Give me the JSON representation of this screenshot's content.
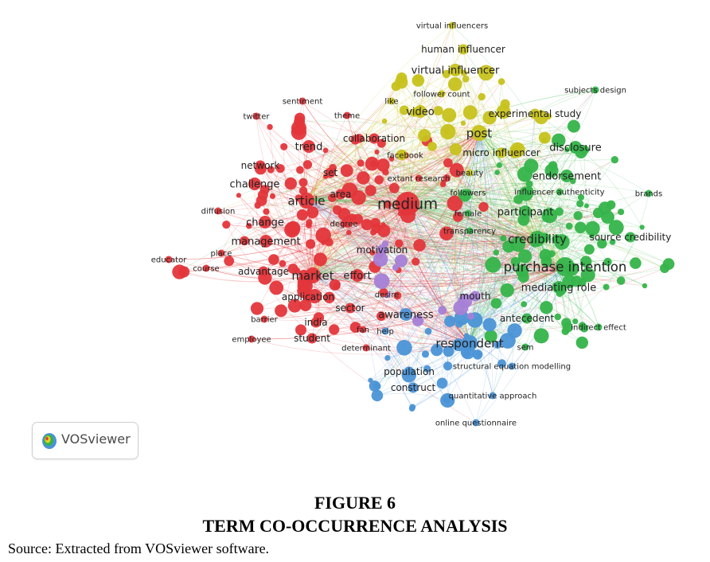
{
  "colors": {
    "red": "#e3363b",
    "green": "#35b44a",
    "blue": "#4b93d6",
    "yellow": "#c7c21c",
    "purple": "#a57fd6"
  },
  "logo": {
    "text": "VOSviewer",
    "icon": "vosviewer-logo-icon"
  },
  "figure": {
    "number": "FIGURE 6",
    "title": "TERM CO-OCCURRENCE ANALYSIS",
    "source": "Source: Extracted from VOSviewer software."
  },
  "network": {
    "terms": [
      {
        "label": "virtual influencers",
        "cluster": "yellow",
        "weight": 1
      },
      {
        "label": "human influencer",
        "cluster": "yellow",
        "weight": 2
      },
      {
        "label": "virtual influencer",
        "cluster": "yellow",
        "weight": 3
      },
      {
        "label": "follower count",
        "cluster": "yellow",
        "weight": 1
      },
      {
        "label": "like",
        "cluster": "yellow",
        "weight": 1
      },
      {
        "label": "video",
        "cluster": "yellow",
        "weight": 3
      },
      {
        "label": "post",
        "cluster": "yellow",
        "weight": 4
      },
      {
        "label": "experimental study",
        "cluster": "yellow",
        "weight": 2
      },
      {
        "label": "micro influencer",
        "cluster": "yellow",
        "weight": 2
      },
      {
        "label": "beauty",
        "cluster": "yellow",
        "weight": 1
      },
      {
        "label": "subjects design",
        "cluster": "green",
        "weight": 1
      },
      {
        "label": "disclosure",
        "cluster": "green",
        "weight": 3
      },
      {
        "label": "endorsement",
        "cluster": "green",
        "weight": 3
      },
      {
        "label": "influencer authenticity",
        "cluster": "green",
        "weight": 1
      },
      {
        "label": "brands",
        "cluster": "green",
        "weight": 1
      },
      {
        "label": "participant",
        "cluster": "green",
        "weight": 3
      },
      {
        "label": "credibility",
        "cluster": "green",
        "weight": 4
      },
      {
        "label": "source credibility",
        "cluster": "green",
        "weight": 2
      },
      {
        "label": "purchase intention",
        "cluster": "green",
        "weight": 5
      },
      {
        "label": "mediating role",
        "cluster": "green",
        "weight": 3
      },
      {
        "label": "indirect effect",
        "cluster": "green",
        "weight": 1
      },
      {
        "label": "antecedent",
        "cluster": "green",
        "weight": 2
      },
      {
        "label": "sem",
        "cluster": "green",
        "weight": 1
      },
      {
        "label": "female",
        "cluster": "green",
        "weight": 1
      },
      {
        "label": "followers",
        "cluster": "green",
        "weight": 1
      },
      {
        "label": "transparency",
        "cluster": "green",
        "weight": 1
      },
      {
        "label": "sentiment",
        "cluster": "red",
        "weight": 1
      },
      {
        "label": "theme",
        "cluster": "red",
        "weight": 1
      },
      {
        "label": "twitter",
        "cluster": "red",
        "weight": 1
      },
      {
        "label": "collaboration",
        "cluster": "red",
        "weight": 2
      },
      {
        "label": "trend",
        "cluster": "red",
        "weight": 3
      },
      {
        "label": "facebook",
        "cluster": "red",
        "weight": 1
      },
      {
        "label": "network",
        "cluster": "red",
        "weight": 2
      },
      {
        "label": "set",
        "cluster": "red",
        "weight": 2
      },
      {
        "label": "extant research",
        "cluster": "red",
        "weight": 1
      },
      {
        "label": "challenge",
        "cluster": "red",
        "weight": 3
      },
      {
        "label": "article",
        "cluster": "red",
        "weight": 4
      },
      {
        "label": "area",
        "cluster": "red",
        "weight": 2
      },
      {
        "label": "medium",
        "cluster": "red",
        "weight": 6
      },
      {
        "label": "diffusion",
        "cluster": "red",
        "weight": 1
      },
      {
        "label": "change",
        "cluster": "red",
        "weight": 3
      },
      {
        "label": "degree",
        "cluster": "red",
        "weight": 1
      },
      {
        "label": "management",
        "cluster": "red",
        "weight": 3
      },
      {
        "label": "educator",
        "cluster": "red",
        "weight": 1
      },
      {
        "label": "place",
        "cluster": "red",
        "weight": 1
      },
      {
        "label": "course",
        "cluster": "red",
        "weight": 1
      },
      {
        "label": "advantage",
        "cluster": "red",
        "weight": 2
      },
      {
        "label": "market",
        "cluster": "red",
        "weight": 4
      },
      {
        "label": "effort",
        "cluster": "red",
        "weight": 3
      },
      {
        "label": "application",
        "cluster": "red",
        "weight": 2
      },
      {
        "label": "sector",
        "cluster": "red",
        "weight": 2
      },
      {
        "label": "barrier",
        "cluster": "red",
        "weight": 1
      },
      {
        "label": "india",
        "cluster": "red",
        "weight": 2
      },
      {
        "label": "employee",
        "cluster": "red",
        "weight": 1
      },
      {
        "label": "student",
        "cluster": "red",
        "weight": 2
      },
      {
        "label": "determinant",
        "cluster": "red",
        "weight": 1
      },
      {
        "label": "fan",
        "cluster": "red",
        "weight": 1
      },
      {
        "label": "motivation",
        "cluster": "purple",
        "weight": 2
      },
      {
        "label": "desire",
        "cluster": "purple",
        "weight": 1
      },
      {
        "label": "mouth",
        "cluster": "purple",
        "weight": 2
      },
      {
        "label": "awareness",
        "cluster": "blue",
        "weight": 3
      },
      {
        "label": "help",
        "cluster": "blue",
        "weight": 1
      },
      {
        "label": "respondent",
        "cluster": "blue",
        "weight": 4
      },
      {
        "label": "structural equation modelling",
        "cluster": "blue",
        "weight": 1
      },
      {
        "label": "population",
        "cluster": "blue",
        "weight": 2
      },
      {
        "label": "construct",
        "cluster": "blue",
        "weight": 2
      },
      {
        "label": "quantitative approach",
        "cluster": "blue",
        "weight": 1
      },
      {
        "label": "online questionnaire",
        "cluster": "blue",
        "weight": 1
      }
    ]
  }
}
